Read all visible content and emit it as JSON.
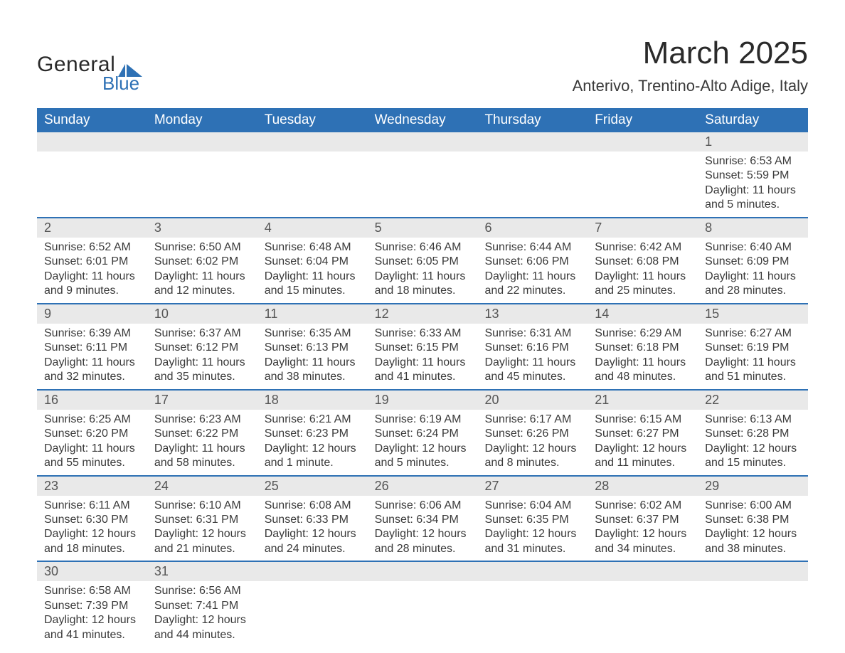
{
  "logo": {
    "general": "General",
    "blue": "Blue",
    "shape_color": "#2e71b5"
  },
  "title": "March 2025",
  "location": "Anterivo, Trentino-Alto Adige, Italy",
  "colors": {
    "header_bg": "#2e71b5",
    "daynum_bg": "#e9e9e9",
    "text": "#3a3a3a",
    "white": "#ffffff"
  },
  "day_headers": [
    "Sunday",
    "Monday",
    "Tuesday",
    "Wednesday",
    "Thursday",
    "Friday",
    "Saturday"
  ],
  "weeks": [
    [
      {
        "day": "",
        "sunrise": "",
        "sunset": "",
        "daylight": ""
      },
      {
        "day": "",
        "sunrise": "",
        "sunset": "",
        "daylight": ""
      },
      {
        "day": "",
        "sunrise": "",
        "sunset": "",
        "daylight": ""
      },
      {
        "day": "",
        "sunrise": "",
        "sunset": "",
        "daylight": ""
      },
      {
        "day": "",
        "sunrise": "",
        "sunset": "",
        "daylight": ""
      },
      {
        "day": "",
        "sunrise": "",
        "sunset": "",
        "daylight": ""
      },
      {
        "day": "1",
        "sunrise": "Sunrise: 6:53 AM",
        "sunset": "Sunset: 5:59 PM",
        "daylight": "Daylight: 11 hours and 5 minutes."
      }
    ],
    [
      {
        "day": "2",
        "sunrise": "Sunrise: 6:52 AM",
        "sunset": "Sunset: 6:01 PM",
        "daylight": "Daylight: 11 hours and 9 minutes."
      },
      {
        "day": "3",
        "sunrise": "Sunrise: 6:50 AM",
        "sunset": "Sunset: 6:02 PM",
        "daylight": "Daylight: 11 hours and 12 minutes."
      },
      {
        "day": "4",
        "sunrise": "Sunrise: 6:48 AM",
        "sunset": "Sunset: 6:04 PM",
        "daylight": "Daylight: 11 hours and 15 minutes."
      },
      {
        "day": "5",
        "sunrise": "Sunrise: 6:46 AM",
        "sunset": "Sunset: 6:05 PM",
        "daylight": "Daylight: 11 hours and 18 minutes."
      },
      {
        "day": "6",
        "sunrise": "Sunrise: 6:44 AM",
        "sunset": "Sunset: 6:06 PM",
        "daylight": "Daylight: 11 hours and 22 minutes."
      },
      {
        "day": "7",
        "sunrise": "Sunrise: 6:42 AM",
        "sunset": "Sunset: 6:08 PM",
        "daylight": "Daylight: 11 hours and 25 minutes."
      },
      {
        "day": "8",
        "sunrise": "Sunrise: 6:40 AM",
        "sunset": "Sunset: 6:09 PM",
        "daylight": "Daylight: 11 hours and 28 minutes."
      }
    ],
    [
      {
        "day": "9",
        "sunrise": "Sunrise: 6:39 AM",
        "sunset": "Sunset: 6:11 PM",
        "daylight": "Daylight: 11 hours and 32 minutes."
      },
      {
        "day": "10",
        "sunrise": "Sunrise: 6:37 AM",
        "sunset": "Sunset: 6:12 PM",
        "daylight": "Daylight: 11 hours and 35 minutes."
      },
      {
        "day": "11",
        "sunrise": "Sunrise: 6:35 AM",
        "sunset": "Sunset: 6:13 PM",
        "daylight": "Daylight: 11 hours and 38 minutes."
      },
      {
        "day": "12",
        "sunrise": "Sunrise: 6:33 AM",
        "sunset": "Sunset: 6:15 PM",
        "daylight": "Daylight: 11 hours and 41 minutes."
      },
      {
        "day": "13",
        "sunrise": "Sunrise: 6:31 AM",
        "sunset": "Sunset: 6:16 PM",
        "daylight": "Daylight: 11 hours and 45 minutes."
      },
      {
        "day": "14",
        "sunrise": "Sunrise: 6:29 AM",
        "sunset": "Sunset: 6:18 PM",
        "daylight": "Daylight: 11 hours and 48 minutes."
      },
      {
        "day": "15",
        "sunrise": "Sunrise: 6:27 AM",
        "sunset": "Sunset: 6:19 PM",
        "daylight": "Daylight: 11 hours and 51 minutes."
      }
    ],
    [
      {
        "day": "16",
        "sunrise": "Sunrise: 6:25 AM",
        "sunset": "Sunset: 6:20 PM",
        "daylight": "Daylight: 11 hours and 55 minutes."
      },
      {
        "day": "17",
        "sunrise": "Sunrise: 6:23 AM",
        "sunset": "Sunset: 6:22 PM",
        "daylight": "Daylight: 11 hours and 58 minutes."
      },
      {
        "day": "18",
        "sunrise": "Sunrise: 6:21 AM",
        "sunset": "Sunset: 6:23 PM",
        "daylight": "Daylight: 12 hours and 1 minute."
      },
      {
        "day": "19",
        "sunrise": "Sunrise: 6:19 AM",
        "sunset": "Sunset: 6:24 PM",
        "daylight": "Daylight: 12 hours and 5 minutes."
      },
      {
        "day": "20",
        "sunrise": "Sunrise: 6:17 AM",
        "sunset": "Sunset: 6:26 PM",
        "daylight": "Daylight: 12 hours and 8 minutes."
      },
      {
        "day": "21",
        "sunrise": "Sunrise: 6:15 AM",
        "sunset": "Sunset: 6:27 PM",
        "daylight": "Daylight: 12 hours and 11 minutes."
      },
      {
        "day": "22",
        "sunrise": "Sunrise: 6:13 AM",
        "sunset": "Sunset: 6:28 PM",
        "daylight": "Daylight: 12 hours and 15 minutes."
      }
    ],
    [
      {
        "day": "23",
        "sunrise": "Sunrise: 6:11 AM",
        "sunset": "Sunset: 6:30 PM",
        "daylight": "Daylight: 12 hours and 18 minutes."
      },
      {
        "day": "24",
        "sunrise": "Sunrise: 6:10 AM",
        "sunset": "Sunset: 6:31 PM",
        "daylight": "Daylight: 12 hours and 21 minutes."
      },
      {
        "day": "25",
        "sunrise": "Sunrise: 6:08 AM",
        "sunset": "Sunset: 6:33 PM",
        "daylight": "Daylight: 12 hours and 24 minutes."
      },
      {
        "day": "26",
        "sunrise": "Sunrise: 6:06 AM",
        "sunset": "Sunset: 6:34 PM",
        "daylight": "Daylight: 12 hours and 28 minutes."
      },
      {
        "day": "27",
        "sunrise": "Sunrise: 6:04 AM",
        "sunset": "Sunset: 6:35 PM",
        "daylight": "Daylight: 12 hours and 31 minutes."
      },
      {
        "day": "28",
        "sunrise": "Sunrise: 6:02 AM",
        "sunset": "Sunset: 6:37 PM",
        "daylight": "Daylight: 12 hours and 34 minutes."
      },
      {
        "day": "29",
        "sunrise": "Sunrise: 6:00 AM",
        "sunset": "Sunset: 6:38 PM",
        "daylight": "Daylight: 12 hours and 38 minutes."
      }
    ],
    [
      {
        "day": "30",
        "sunrise": "Sunrise: 6:58 AM",
        "sunset": "Sunset: 7:39 PM",
        "daylight": "Daylight: 12 hours and 41 minutes."
      },
      {
        "day": "31",
        "sunrise": "Sunrise: 6:56 AM",
        "sunset": "Sunset: 7:41 PM",
        "daylight": "Daylight: 12 hours and 44 minutes."
      },
      {
        "day": "",
        "sunrise": "",
        "sunset": "",
        "daylight": ""
      },
      {
        "day": "",
        "sunrise": "",
        "sunset": "",
        "daylight": ""
      },
      {
        "day": "",
        "sunrise": "",
        "sunset": "",
        "daylight": ""
      },
      {
        "day": "",
        "sunrise": "",
        "sunset": "",
        "daylight": ""
      },
      {
        "day": "",
        "sunrise": "",
        "sunset": "",
        "daylight": ""
      }
    ]
  ]
}
